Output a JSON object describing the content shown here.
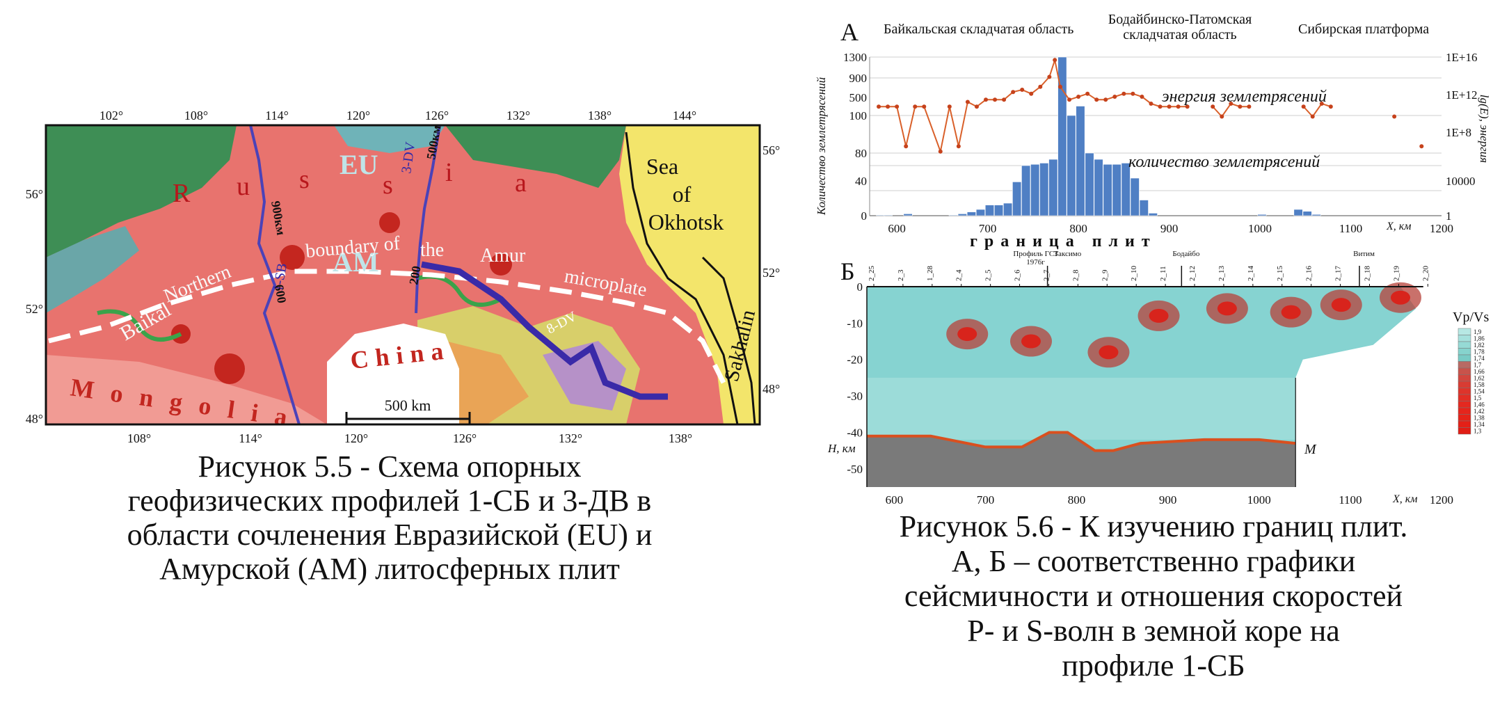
{
  "left_figure": {
    "lon_labels_top": [
      "102°",
      "108°",
      "114°",
      "120°",
      "126°",
      "132°",
      "138°",
      "144°"
    ],
    "lon_labels_bottom": [
      "108°",
      "114°",
      "120°",
      "126°",
      "132°",
      "138°"
    ],
    "lat_labels_left": [
      "56°",
      "52°",
      "48°"
    ],
    "lat_labels_right": [
      "56°",
      "52°",
      "48°"
    ],
    "region_labels": {
      "russia": [
        "R",
        "u",
        "s",
        "s",
        "i",
        "a"
      ],
      "eu": "EU",
      "am": "AM",
      "sea": [
        "Sea",
        "of",
        "Okhotsk"
      ],
      "sakhalin": "Sakhalin",
      "china": "China",
      "mongolia": "Mongolia",
      "boundary": [
        "Baikal",
        "Northern",
        "boundary of",
        "the",
        "Amur",
        "microplate"
      ]
    },
    "profile_labels": {
      "p1": "1-SB",
      "p3": "3-DV",
      "p8": "8-DV"
    },
    "distance_labels": {
      "d1": "900км",
      "d2": "600",
      "d3": "500км",
      "d4": "200"
    },
    "scale_bar": "500 km",
    "caption_lines": [
      "Рисунок 5.5 - Схема опорных",
      "геофизических профилей 1-СБ и 3-ДВ в",
      "области сочленения Евразийской (EU) и",
      "Амурской (AM) литосферных плит"
    ]
  },
  "right_figure": {
    "panel_a_letter": "А",
    "panel_b_letter": "Б",
    "region_headers": [
      "Байкальская складчатая область",
      "Бодайбинско-Патомская",
      "складчатая область",
      "Сибирская платформа"
    ],
    "chart_data": [
      {
        "type": "bar",
        "x_axis_label": "X, км",
        "y_left_label": "Количество землетрясений",
        "y_right_label": "lg(E), энергия",
        "y_left_ticks": [
          "1300",
          "900",
          "500",
          "100",
          "80",
          "40",
          "0"
        ],
        "y_right_ticks": [
          "1E+16",
          "1E+12",
          "1E+8",
          "10000",
          "1"
        ],
        "x_ticks": [
          600,
          700,
          800,
          900,
          1000,
          1100,
          1200
        ],
        "series_labels": {
          "energy": "энергия землетрясений",
          "count": "количество землетрясений"
        },
        "bottom_label": "граница плит",
        "counts": [
          {
            "x": 582,
            "y": 1
          },
          {
            "x": 590,
            "y": 1
          },
          {
            "x": 612,
            "y": 3
          },
          {
            "x": 662,
            "y": 1
          },
          {
            "x": 672,
            "y": 3
          },
          {
            "x": 682,
            "y": 6
          },
          {
            "x": 692,
            "y": 10
          },
          {
            "x": 702,
            "y": 17
          },
          {
            "x": 712,
            "y": 17
          },
          {
            "x": 722,
            "y": 20
          },
          {
            "x": 732,
            "y": 54
          },
          {
            "x": 742,
            "y": 80
          },
          {
            "x": 752,
            "y": 82
          },
          {
            "x": 762,
            "y": 84
          },
          {
            "x": 772,
            "y": 90
          },
          {
            "x": 782,
            "y": 1300
          },
          {
            "x": 792,
            "y": 500
          },
          {
            "x": 802,
            "y": 600
          },
          {
            "x": 812,
            "y": 100
          },
          {
            "x": 822,
            "y": 90
          },
          {
            "x": 832,
            "y": 82
          },
          {
            "x": 842,
            "y": 82
          },
          {
            "x": 852,
            "y": 84
          },
          {
            "x": 862,
            "y": 60
          },
          {
            "x": 872,
            "y": 25
          },
          {
            "x": 882,
            "y": 4
          },
          {
            "x": 1002,
            "y": 2
          },
          {
            "x": 1042,
            "y": 10
          },
          {
            "x": 1052,
            "y": 7
          },
          {
            "x": 1062,
            "y": 2
          }
        ],
        "energy_points": [
          {
            "x": 580,
            "y": 100000000000.0
          },
          {
            "x": 590,
            "y": 100000000000.0
          },
          {
            "x": 600,
            "y": 100000000000.0
          },
          {
            "x": 610,
            "y": 10000000.0
          },
          {
            "x": 620,
            "y": 100000000000.0
          },
          {
            "x": 630,
            "y": 100000000000.0
          },
          {
            "x": 648,
            "y": 3000000.0
          },
          {
            "x": 658,
            "y": 100000000000.0
          },
          {
            "x": 668,
            "y": 10000000.0
          },
          {
            "x": 678,
            "y": 300000000000.0
          },
          {
            "x": 688,
            "y": 100000000000.0
          },
          {
            "x": 698,
            "y": 500000000000.0
          },
          {
            "x": 708,
            "y": 500000000000.0
          },
          {
            "x": 718,
            "y": 500000000000.0
          },
          {
            "x": 728,
            "y": 3000000000000.0
          },
          {
            "x": 738,
            "y": 5000000000000.0
          },
          {
            "x": 748,
            "y": 2000000000000.0
          },
          {
            "x": 758,
            "y": 10000000000000.0
          },
          {
            "x": 768,
            "y": 100000000000000.0
          },
          {
            "x": 774,
            "y": 5000000000000000.0
          },
          {
            "x": 780,
            "y": 10000000000000.0
          },
          {
            "x": 790,
            "y": 500000000000.0
          },
          {
            "x": 800,
            "y": 1000000000000.0
          },
          {
            "x": 810,
            "y": 2000000000000.0
          },
          {
            "x": 820,
            "y": 500000000000.0
          },
          {
            "x": 830,
            "y": 500000000000.0
          },
          {
            "x": 840,
            "y": 1000000000000.0
          },
          {
            "x": 850,
            "y": 2000000000000.0
          },
          {
            "x": 860,
            "y": 2000000000000.0
          },
          {
            "x": 870,
            "y": 1000000000000.0
          },
          {
            "x": 880,
            "y": 200000000000.0
          },
          {
            "x": 890,
            "y": 100000000000.0
          },
          {
            "x": 900,
            "y": 100000000000.0
          },
          {
            "x": 910,
            "y": 100000000000.0
          },
          {
            "x": 920,
            "y": 100000000000.0
          },
          {
            "x": 948,
            "y": 100000000000.0
          },
          {
            "x": 958,
            "y": 10000000000.0
          },
          {
            "x": 968,
            "y": 200000000000.0
          },
          {
            "x": 978,
            "y": 100000000000.0
          },
          {
            "x": 988,
            "y": 100000000000.0
          },
          {
            "x": 1048,
            "y": 100000000000.0
          },
          {
            "x": 1058,
            "y": 10000000000.0
          },
          {
            "x": 1068,
            "y": 200000000000.0
          },
          {
            "x": 1078,
            "y": 100000000000.0
          },
          {
            "x": 1148,
            "y": 10000000000.0
          },
          {
            "x": 1178,
            "y": 10000000.0
          }
        ]
      },
      {
        "type": "heatmap",
        "x_axis_label": "X, км",
        "y_axis_label": "H, км",
        "x_ticks": [
          600,
          700,
          800,
          900,
          1000,
          1100,
          1200
        ],
        "y_ticks": [
          "0",
          "-10",
          "-20",
          "-30",
          "-40",
          "-50"
        ],
        "legend_title": "Vp/Vs",
        "legend_values": [
          "1,9",
          "1,86",
          "1,82",
          "1,78",
          "1,74",
          "1,7",
          "1,66",
          "1,62",
          "1,58",
          "1,54",
          "1,5",
          "1,46",
          "1,42",
          "1,38",
          "1,34",
          "1,3"
        ],
        "moho_label": "M",
        "station_labels": [
          "2_25",
          "2_3",
          "1_28",
          "2_4",
          "2_5",
          "2_6",
          "2_7",
          "2_8",
          "2_9",
          "2_10",
          "2_11",
          "2_12",
          "2_13",
          "2_14",
          "2_15",
          "2_16",
          "2_17",
          "2_18",
          "2_19",
          "2_20"
        ],
        "top_annotations": [
          "Профиль ГСЗ",
          "1976г",
          "Таксимо",
          "Бодайбо",
          "Витим"
        ],
        "hotspots": [
          {
            "x": 680,
            "y": -13
          },
          {
            "x": 750,
            "y": -15
          },
          {
            "x": 835,
            "y": -18
          },
          {
            "x": 890,
            "y": -8
          },
          {
            "x": 965,
            "y": -6
          },
          {
            "x": 1035,
            "y": -7
          },
          {
            "x": 1090,
            "y": -5
          },
          {
            "x": 1155,
            "y": -3
          }
        ]
      }
    ],
    "caption_lines": [
      "Рисунок 5.6 - К изучению границ плит.",
      "А, Б – соответственно графики",
      "сейсмичности и отношения скоростей",
      "P- и S-волн в земной коре на",
      "профиле 1-СБ"
    ]
  }
}
